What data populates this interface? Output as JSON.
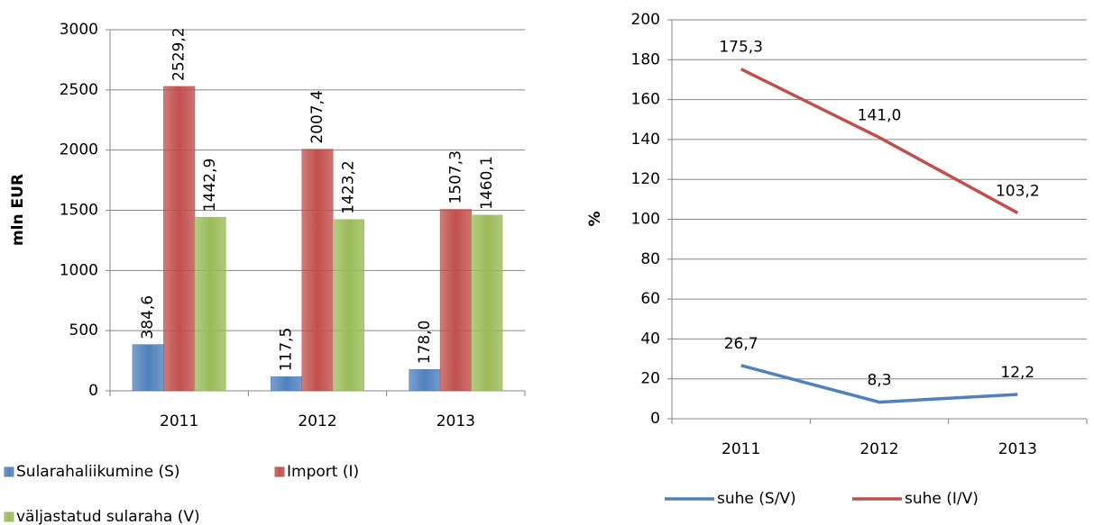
{
  "chart_data": [
    {
      "type": "bar",
      "y_label": "mln EUR",
      "categories": [
        "2011",
        "2012",
        "2013"
      ],
      "series": [
        {
          "name": "Sularahaliikumine (S)",
          "color": "#4f81bd",
          "values": [
            384.6,
            117.5,
            178.0
          ],
          "value_labels": [
            "384,6",
            "117,5",
            "178,0"
          ]
        },
        {
          "name": "Import (I)",
          "color": "#c0504d",
          "values": [
            2529.2,
            2007.4,
            1507.3
          ],
          "value_labels": [
            "2529,2",
            "2007,4",
            "1507,3"
          ]
        },
        {
          "name": "väljastatud sularaha (V)",
          "color": "#9bbb59",
          "values": [
            1442.9,
            1423.2,
            1460.1
          ],
          "value_labels": [
            "1442,9",
            "1423,2",
            "1460,1"
          ]
        }
      ],
      "ylim": [
        0,
        3000
      ],
      "yticks": [
        0,
        500,
        1000,
        1500,
        2000,
        2500,
        3000
      ],
      "grid": true,
      "legend": "bottom"
    },
    {
      "type": "line",
      "y_label": "%",
      "categories": [
        "2011",
        "2012",
        "2013"
      ],
      "series": [
        {
          "name": "suhe (S/V)",
          "color": "#4f81bd",
          "label_color": "#1f6fb5",
          "values": [
            26.7,
            8.3,
            12.2
          ],
          "value_labels": [
            "26,7",
            "8,3",
            "12,2"
          ]
        },
        {
          "name": "suhe (I/V)",
          "color": "#c0504d",
          "label_color": "#b5201e",
          "values": [
            175.3,
            141.0,
            103.2
          ],
          "value_labels": [
            "175,3",
            "141,0",
            "103,2"
          ]
        }
      ],
      "ylim": [
        0,
        200
      ],
      "yticks": [
        0,
        20,
        40,
        60,
        80,
        100,
        120,
        140,
        160,
        180,
        200
      ],
      "grid": true,
      "legend": "bottom"
    }
  ]
}
